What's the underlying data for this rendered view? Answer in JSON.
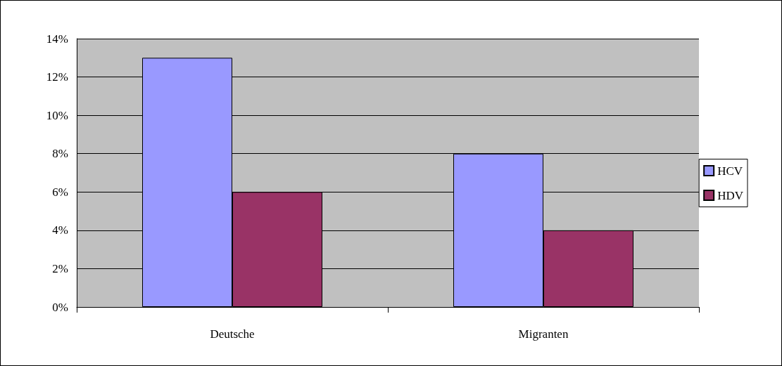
{
  "chart_data": {
    "type": "bar",
    "categories": [
      "Deutsche",
      "Migranten"
    ],
    "series": [
      {
        "name": "HCV",
        "color": "#9999ff",
        "values": [
          13,
          8
        ]
      },
      {
        "name": "HDV",
        "color": "#993366",
        "values": [
          6,
          4
        ]
      }
    ],
    "ylim": [
      0,
      14
    ],
    "yticks": [
      {
        "value": 0,
        "label": "0%"
      },
      {
        "value": 2,
        "label": "2%"
      },
      {
        "value": 4,
        "label": "4%"
      },
      {
        "value": 6,
        "label": "6%"
      },
      {
        "value": 8,
        "label": "8%"
      },
      {
        "value": 10,
        "label": "10%"
      },
      {
        "value": 12,
        "label": "12%"
      },
      {
        "value": 14,
        "label": "14%"
      }
    ],
    "grid": "y",
    "legend": "right"
  }
}
